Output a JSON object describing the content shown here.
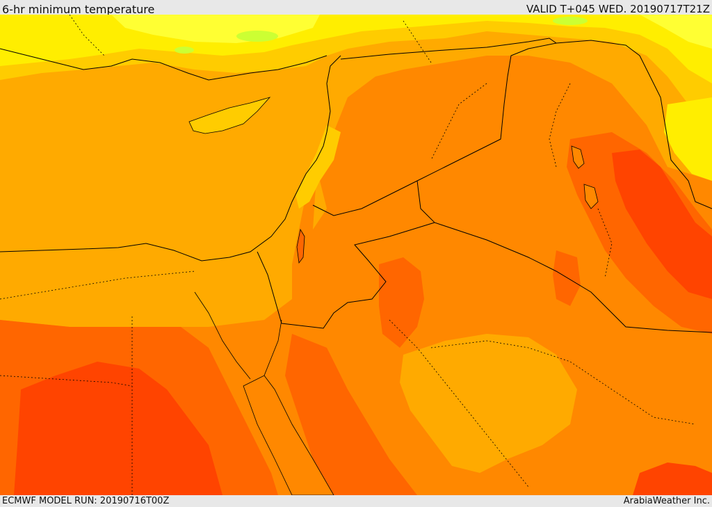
{
  "header": {
    "title": "6-hr minimum temperature",
    "valid_time": "VALID T+045 WED. 20190717T21Z"
  },
  "footer": {
    "model_run": "ECMWF MODEL RUN: 20190716T00Z",
    "credit": "ArabiaWeather Inc."
  },
  "colors": {
    "background_base": "#ff8800",
    "light_orange": "#ffaa00",
    "yellow_orange": "#ffcc00",
    "yellow": "#ffee00",
    "light_yellow": "#ffff33",
    "green_tint": "#ccff33",
    "dark_orange": "#ff6600",
    "red_orange": "#ff4400",
    "border_line": "#000000"
  }
}
